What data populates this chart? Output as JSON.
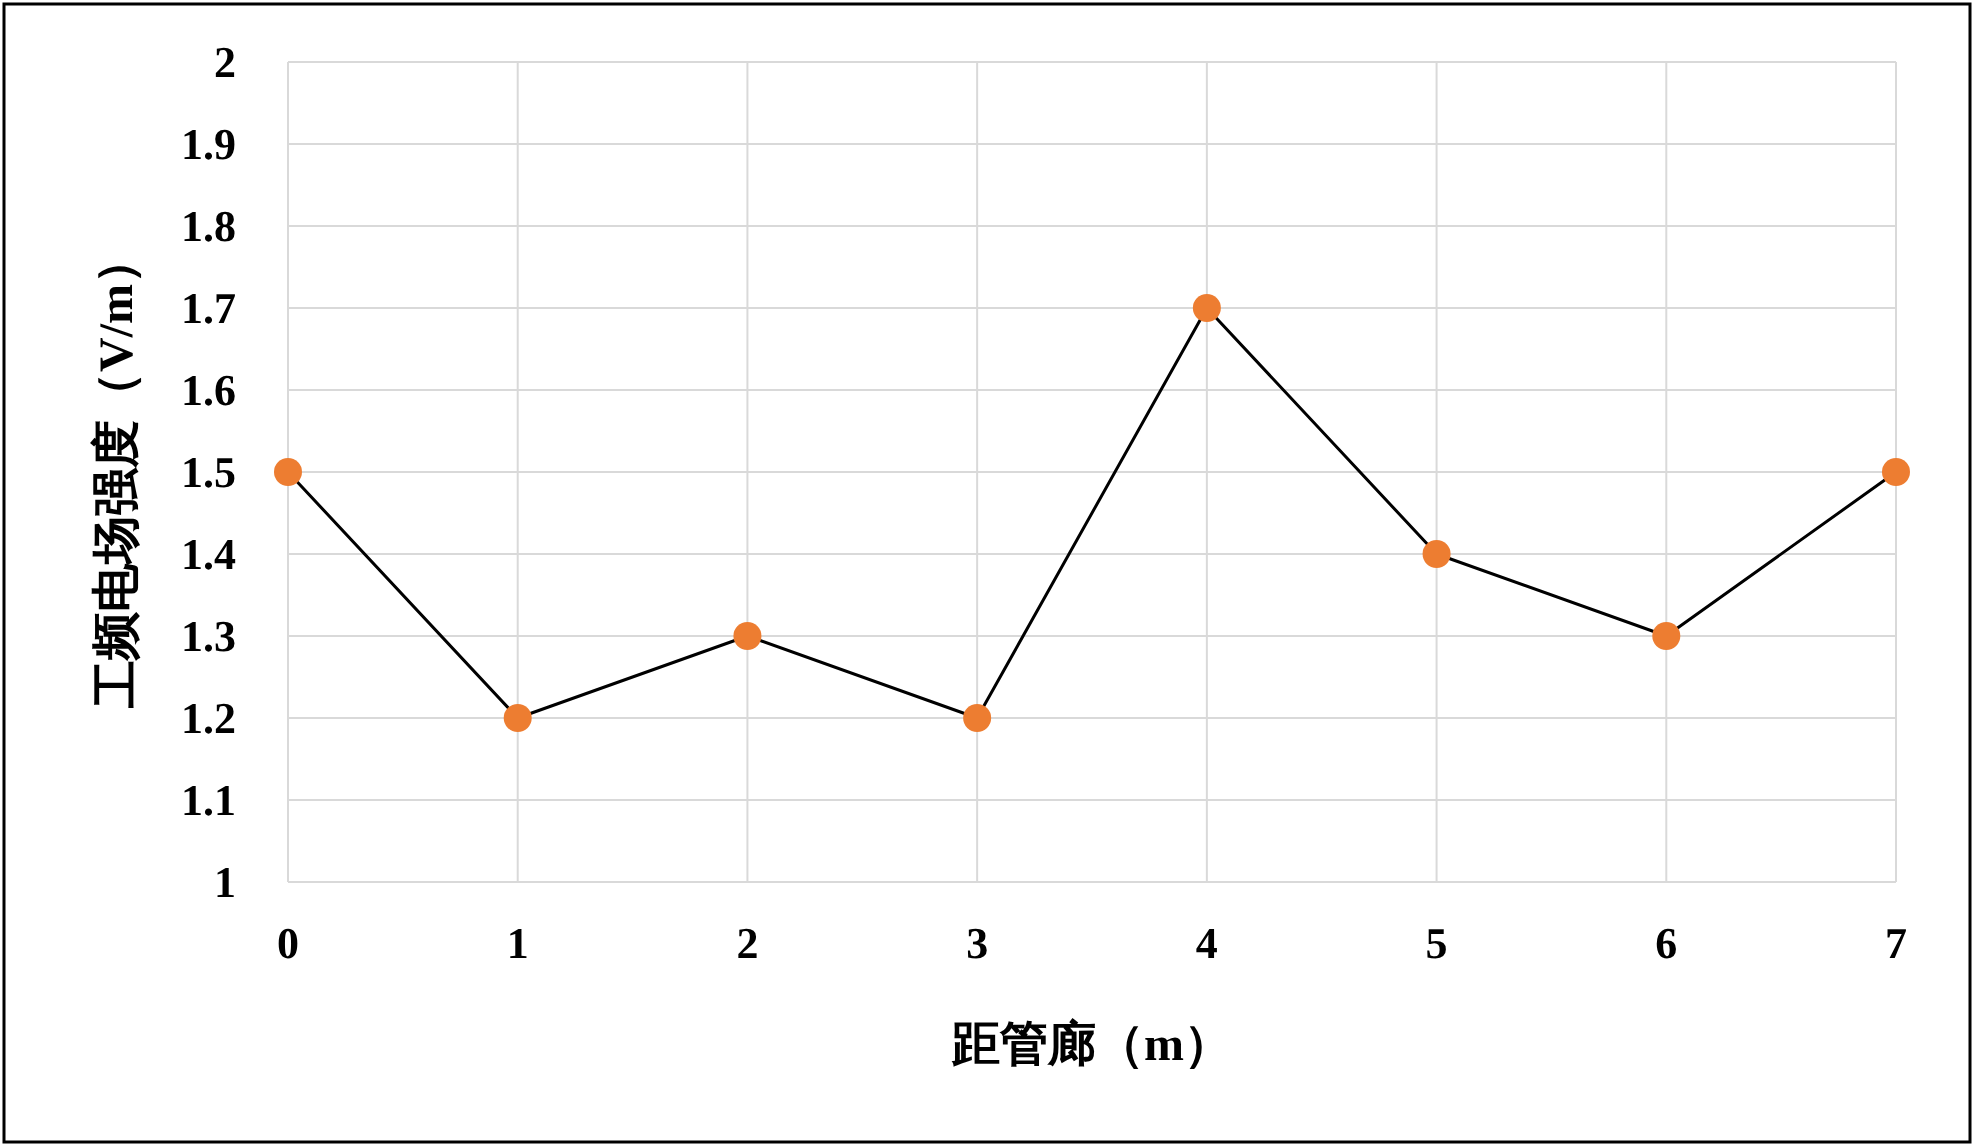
{
  "chart_data": {
    "type": "line",
    "xlabel": "距管廊（m）",
    "ylabel": "工频电场强度（V/m）",
    "x": [
      0,
      1,
      2,
      3,
      4,
      5,
      6,
      7
    ],
    "series": [
      {
        "color": "#000000",
        "colors": [
          "#ed7d31",
          "#ed7d31",
          "#ed7d31",
          "#ed7d31",
          "#ed7d31",
          "#ed7d31",
          "#ed7d31",
          "#ed7d31"
        ],
        "values": [
          1.5,
          1.2,
          1.3,
          1.2,
          1.7,
          1.4,
          1.3,
          1.5
        ]
      }
    ],
    "xlim": [
      0,
      7
    ],
    "xticks": [
      0,
      1,
      2,
      3,
      4,
      5,
      6,
      7
    ],
    "ylim": [
      1,
      2
    ],
    "yticks": [
      1,
      1.1,
      1.2,
      1.3,
      1.4,
      1.5,
      1.6,
      1.7,
      1.8,
      1.9,
      2
    ],
    "grid": true,
    "marker": "circle",
    "line_style": "solid"
  }
}
